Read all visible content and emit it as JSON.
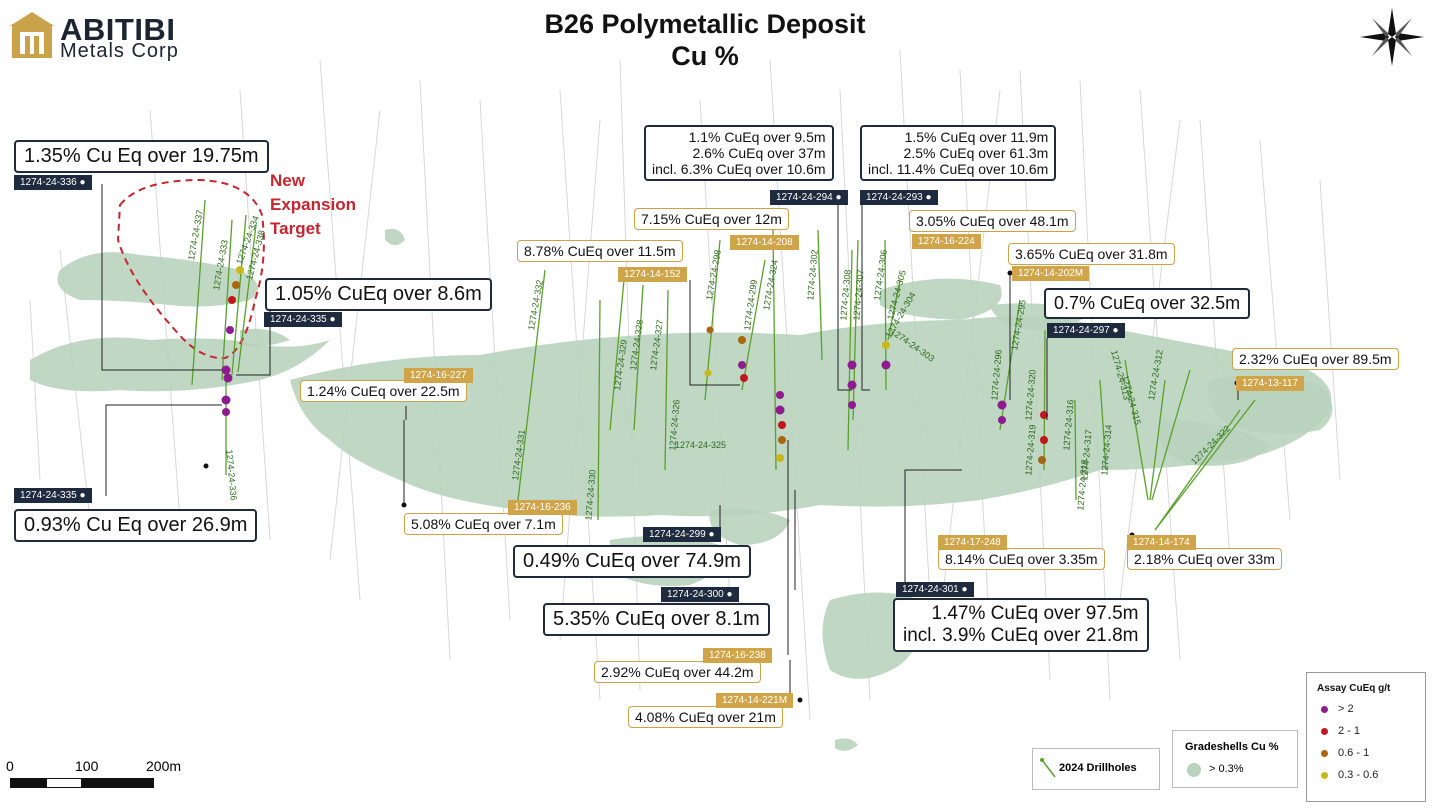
{
  "header": {
    "logo_name": "ABITIBI",
    "logo_sub": "Metals Corp",
    "title_line1": "B26 Polymetallic Deposit",
    "title_line2": "Cu %"
  },
  "annotation": {
    "line1": "New",
    "line2": "Expansion",
    "line3": "Target"
  },
  "callouts": [
    {
      "id": "c336",
      "lines": [
        "1.35% Cu Eq over 19.75m"
      ],
      "tag": "1274-24-336",
      "tag_style": "dark"
    },
    {
      "id": "c335a",
      "lines": [
        "1.05% CuEq over 8.6m"
      ],
      "tag": "1274-24-335",
      "tag_style": "dark"
    },
    {
      "id": "c335b",
      "lines": [
        "0.93% Cu Eq over 26.9m"
      ],
      "tag": "1274-24-335",
      "tag_style": "dark"
    },
    {
      "id": "c227",
      "lines": [
        "1.24% CuEq over 22.5m"
      ],
      "tag": "1274-16-227",
      "tag_style": "gold"
    },
    {
      "id": "c236",
      "lines": [
        "5.08% CuEq over 7.1m"
      ],
      "tag": "1274-16-236",
      "tag_style": "gold"
    },
    {
      "id": "c152",
      "lines": [
        "8.78% CuEq over 11.5m"
      ],
      "tag": "1274-14-152",
      "tag_style": "gold"
    },
    {
      "id": "c208",
      "lines": [
        "7.15% CuEq over 12m"
      ],
      "tag": "1274-14-208",
      "tag_style": "gold"
    },
    {
      "id": "c294",
      "lines": [
        "1.1% CuEq over 9.5m",
        "2.6% CuEq over 37m",
        "incl. 6.3% CuEq over 10.6m"
      ],
      "tag": "1274-24-294",
      "tag_style": "dark"
    },
    {
      "id": "c293",
      "lines": [
        "1.5% CuEq over 11.9m",
        "2.5% CuEq over 61.3m",
        "incl. 11.4% CuEq over 10.6m"
      ],
      "tag": "1274-24-293",
      "tag_style": "dark"
    },
    {
      "id": "c224",
      "lines": [
        "3.05% CuEq over 48.1m"
      ],
      "tag": "1274-16-224",
      "tag_style": "gold"
    },
    {
      "id": "c202",
      "lines": [
        "3.65% CuEq over 31.8m"
      ],
      "tag": "1274-14-202M",
      "tag_style": "gold"
    },
    {
      "id": "c297",
      "lines": [
        "0.7% CuEq over 32.5m"
      ],
      "tag": "1274-24-297",
      "tag_style": "dark"
    },
    {
      "id": "c117",
      "lines": [
        "2.32% CuEq over 89.5m"
      ],
      "tag": "1274-13-117",
      "tag_style": "gold"
    },
    {
      "id": "c299",
      "lines": [
        "0.49% CuEq over 74.9m"
      ],
      "tag": "1274-24-299",
      "tag_style": "dark"
    },
    {
      "id": "c300",
      "lines": [
        "5.35% CuEq over 8.1m"
      ],
      "tag": "1274-24-300",
      "tag_style": "dark"
    },
    {
      "id": "c238",
      "lines": [
        "2.92% CuEq over 44.2m"
      ],
      "tag": "1274-16-238",
      "tag_style": "gold"
    },
    {
      "id": "c221",
      "lines": [
        "4.08% CuEq over 21m"
      ],
      "tag": "1274-14-221M",
      "tag_style": "gold"
    },
    {
      "id": "c301",
      "lines": [
        "1.47% CuEq over 97.5m",
        "incl. 3.9% CuEq over 21.8m"
      ],
      "tag": "1274-24-301",
      "tag_style": "dark"
    },
    {
      "id": "c248",
      "lines": [
        "8.14% CuEq over 3.35m"
      ],
      "tag": "1274-17-248",
      "tag_style": "gold"
    },
    {
      "id": "c174",
      "lines": [
        "2.18% CuEq over 33m"
      ],
      "tag": "1274-14-174",
      "tag_style": "gold"
    }
  ],
  "drillhole_labels": [
    "1274-24-337",
    "1274-24-333",
    "1274-24-334",
    "1274-24-338",
    "1274-24-336",
    "1274-24-332",
    "1274-24-331",
    "1274-24-330",
    "1274-24-329",
    "1274-24-328",
    "1274-24-327",
    "1274-24-326",
    "1274-24-325",
    "1274-24-298",
    "1274-24-299",
    "1274-24-324",
    "1274-24-302",
    "1274-24-308",
    "1274-24-307",
    "1274-24-306",
    "1274-24-305",
    "1274-24-304",
    "1274-24-303",
    "1274-24-296",
    "1274-24-295",
    "1274-24-320",
    "1274-24-319",
    "1274-24-316",
    "1274-24-318",
    "1274-24-317",
    "1274-24-314",
    "1274-24-315",
    "1274-24-312",
    "1274-24-313",
    "1274-24-322"
  ],
  "scale": {
    "labels": [
      "0",
      "100",
      "200m"
    ]
  },
  "legend_assay": {
    "title": "Assay CuEq g/t",
    "items": [
      {
        "label": "> 2",
        "color": "#8e1b8f"
      },
      {
        "label": "2 - 1",
        "color": "#c0161c"
      },
      {
        "label": "0.6 - 1",
        "color": "#a8660e"
      },
      {
        "label": "0.3 - 0.6",
        "color": "#c9b817"
      }
    ]
  },
  "legend_drillholes": {
    "label": "2024 Drillholes",
    "color": "#5aa02c"
  },
  "legend_gradeshells": {
    "title": "Gradeshells Cu %",
    "label": "> 0.3%",
    "color": "#b9d3be"
  },
  "colors": {
    "dark_tag": "#1e2a3d",
    "gold_tag": "#d0a448",
    "shell": "#b9d3be",
    "drillhole": "#5aa02c",
    "expansion": "#c4262e"
  }
}
